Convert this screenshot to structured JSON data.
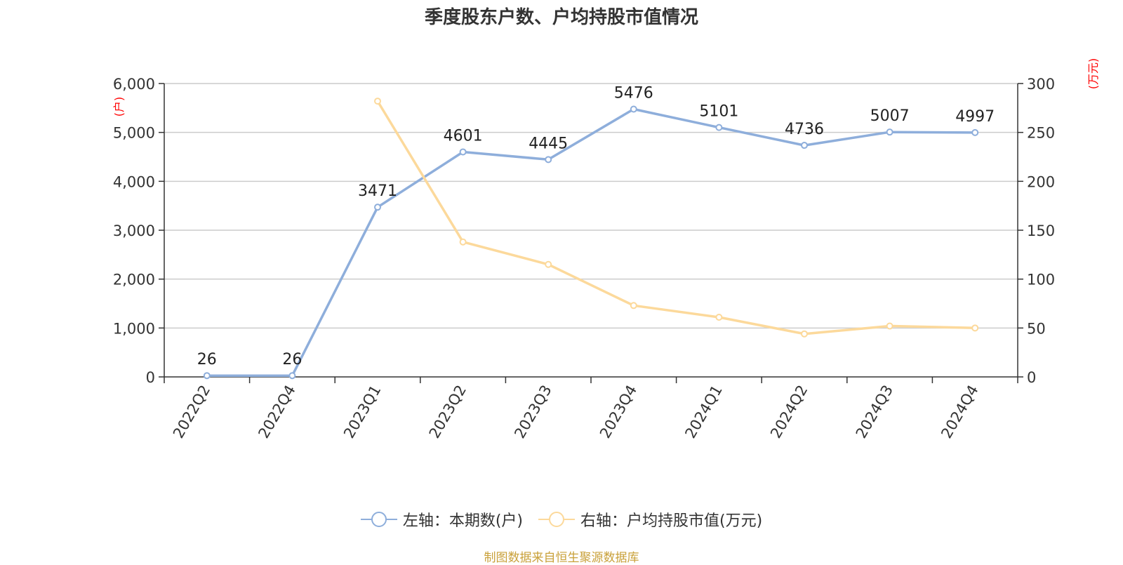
{
  "title": "季度股东户数、户均持股市值情况",
  "source": "制图数据来自恒生聚源数据库",
  "colors": {
    "households": "#8eaedb",
    "marketValue": "#fcd99b",
    "unit": "#ff0000",
    "axis": "#333333",
    "grid": "#cccccc"
  },
  "chart_data": {
    "type": "line",
    "title": "季度股东户数、户均持股市值情况",
    "categories": [
      "2022Q2",
      "2022Q4",
      "2023Q1",
      "2023Q2",
      "2023Q3",
      "2023Q4",
      "2024Q1",
      "2024Q2",
      "2024Q3",
      "2024Q4"
    ],
    "left_axis": {
      "unit": "(户)",
      "min": 0,
      "max": 6000,
      "ticks": [
        0,
        1000,
        2000,
        3000,
        4000,
        5000,
        6000
      ],
      "tick_labels": [
        "0",
        "1,000",
        "2,000",
        "3,000",
        "4,000",
        "5,000",
        "6,000"
      ]
    },
    "right_axis": {
      "unit": "(万元)",
      "min": 0,
      "max": 300,
      "ticks": [
        0,
        50,
        100,
        150,
        200,
        250,
        300
      ],
      "tick_labels": [
        "0",
        "50",
        "100",
        "150",
        "200",
        "250",
        "300"
      ]
    },
    "grid": true,
    "legend_position": "bottom",
    "series": [
      {
        "name": "左轴：本期数(户)",
        "axis": "left",
        "values": [
          26,
          26,
          3471,
          4601,
          4445,
          5476,
          5101,
          4736,
          5007,
          4997
        ],
        "labels": [
          "26",
          "26",
          "3471",
          "4601",
          "4445",
          "5476",
          "5101",
          "4736",
          "5007",
          "4997"
        ]
      },
      {
        "name": "右轴：户均持股市值(万元)",
        "axis": "right",
        "values": [
          null,
          null,
          282,
          138,
          115,
          73,
          61,
          44,
          52,
          50
        ]
      }
    ]
  }
}
